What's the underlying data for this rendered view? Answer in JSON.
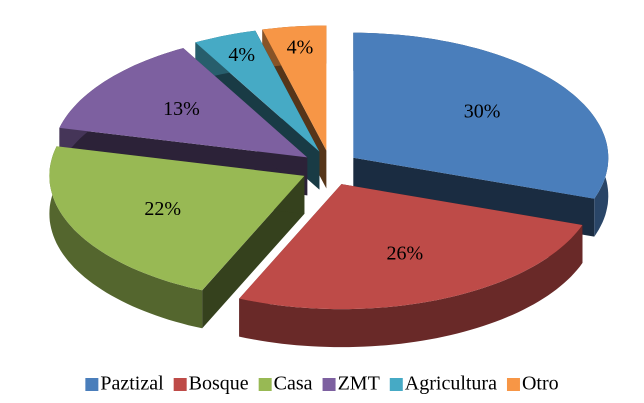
{
  "chart_data": {
    "type": "pie",
    "categories": [
      "Paztizal",
      "Bosque",
      "Casa",
      "ZMT",
      "Agricultura",
      "Otro"
    ],
    "values": [
      30,
      26,
      22,
      13,
      4,
      4
    ],
    "value_labels": [
      "30%",
      "26%",
      "22%",
      "13%",
      "4%",
      "4%"
    ],
    "colors": [
      "#4a7ebb",
      "#be4b48",
      "#98b954",
      "#7d60a0",
      "#46aac5",
      "#f79646"
    ],
    "legend": "bottom"
  }
}
